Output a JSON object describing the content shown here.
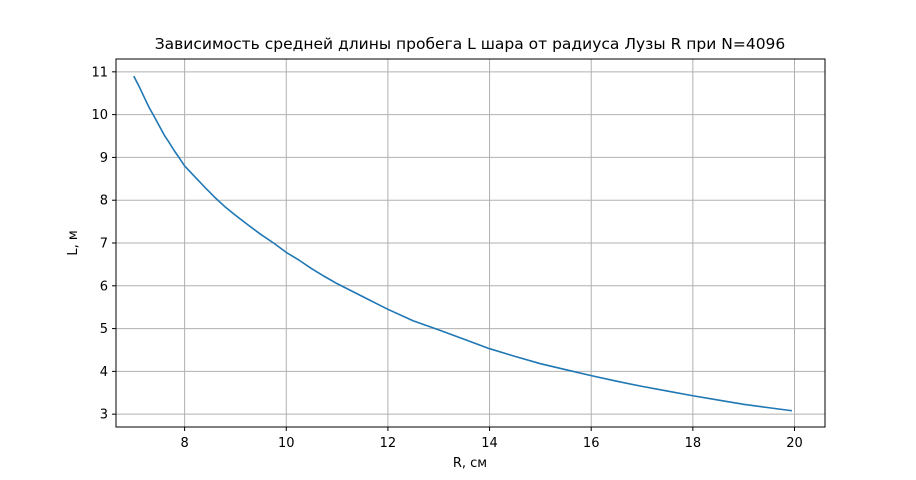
{
  "chart_data": {
    "type": "line",
    "title": "Зависимость средней длины пробега L шара от радиуса Лузы R при N=4096",
    "xlabel": "R, см",
    "ylabel": "L, м",
    "xlim": [
      6.65,
      20.6
    ],
    "ylim": [
      2.7,
      11.3
    ],
    "x_ticks": [
      8,
      10,
      12,
      14,
      16,
      18,
      20
    ],
    "y_ticks": [
      3,
      4,
      5,
      6,
      7,
      8,
      9,
      10,
      11
    ],
    "grid": true,
    "series_color": "#1f77b4",
    "series": [
      {
        "x": [
          7.0,
          7.1,
          7.2,
          7.3,
          7.4,
          7.5,
          7.6,
          7.7,
          7.8,
          7.9,
          8.0,
          8.2,
          8.4,
          8.6,
          8.8,
          9.0,
          9.25,
          9.5,
          9.75,
          10.0,
          10.25,
          10.5,
          10.75,
          11.0,
          11.5,
          12.0,
          12.5,
          13.0,
          13.5,
          14.0,
          14.5,
          15.0,
          15.5,
          16.0,
          16.5,
          17.0,
          17.5,
          18.0,
          18.5,
          19.0,
          19.5,
          19.95
        ],
        "y": [
          10.9,
          10.67,
          10.42,
          10.17,
          9.96,
          9.74,
          9.52,
          9.34,
          9.15,
          8.98,
          8.8,
          8.55,
          8.3,
          8.06,
          7.84,
          7.65,
          7.42,
          7.2,
          7.0,
          6.78,
          6.6,
          6.4,
          6.22,
          6.05,
          5.75,
          5.45,
          5.18,
          4.97,
          4.75,
          4.53,
          4.35,
          4.18,
          4.04,
          3.9,
          3.77,
          3.65,
          3.54,
          3.43,
          3.33,
          3.23,
          3.15,
          3.08
        ]
      }
    ]
  }
}
